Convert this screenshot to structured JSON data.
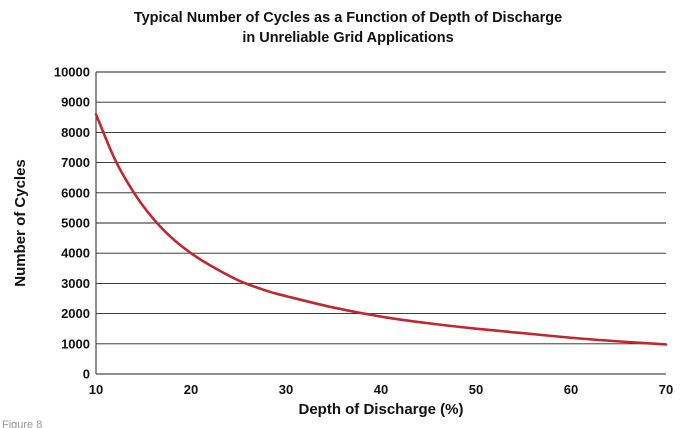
{
  "chart_data": {
    "type": "line",
    "title_line1": "Typical Number of Cycles as a Function of Depth of Discharge",
    "title_line2": "in Unreliable Grid Applications",
    "xlabel": "Depth of Discharge (%)",
    "ylabel": "Number of Cycles",
    "xlim": [
      10,
      70
    ],
    "ylim": [
      0,
      10000
    ],
    "x_ticks": [
      10,
      20,
      30,
      40,
      50,
      60,
      70
    ],
    "y_ticks": [
      0,
      1000,
      2000,
      3000,
      4000,
      5000,
      6000,
      7000,
      8000,
      9000,
      10000
    ],
    "grid": "horizontal",
    "series": [
      {
        "color": "#c0282d",
        "x": [
          10,
          12,
          14,
          16,
          18,
          20,
          22,
          25,
          28,
          30,
          35,
          40,
          45,
          50,
          55,
          60,
          65,
          70
        ],
        "y": [
          8600,
          7100,
          6000,
          5150,
          4500,
          4000,
          3600,
          3100,
          2750,
          2580,
          2200,
          1900,
          1680,
          1500,
          1350,
          1200,
          1080,
          980
        ]
      }
    ]
  },
  "caption": "Figure 8"
}
